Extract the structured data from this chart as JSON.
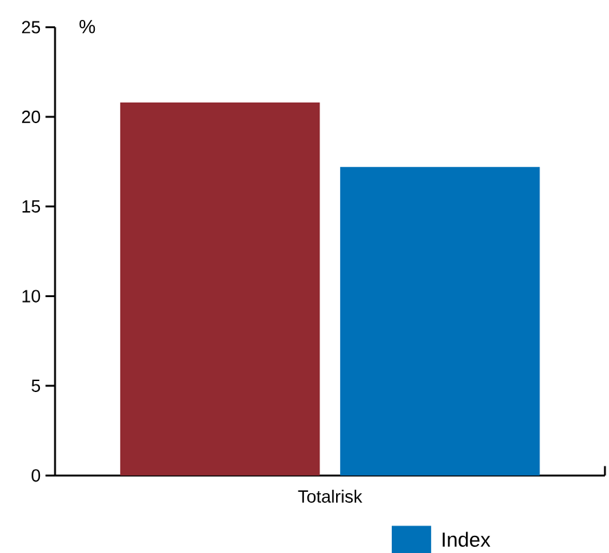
{
  "chart_data": {
    "type": "bar",
    "ylabel": "%",
    "categories": [
      "Totalrisk"
    ],
    "series": [
      {
        "color": "#922a31",
        "values": [
          20.8
        ]
      },
      {
        "name": "Index",
        "color": "#0071b8",
        "values": [
          17.2
        ]
      }
    ],
    "ylim": [
      0,
      25
    ],
    "yticks": [
      0,
      5,
      10,
      15,
      20,
      25
    ],
    "grid": false,
    "legend": "bottom"
  }
}
